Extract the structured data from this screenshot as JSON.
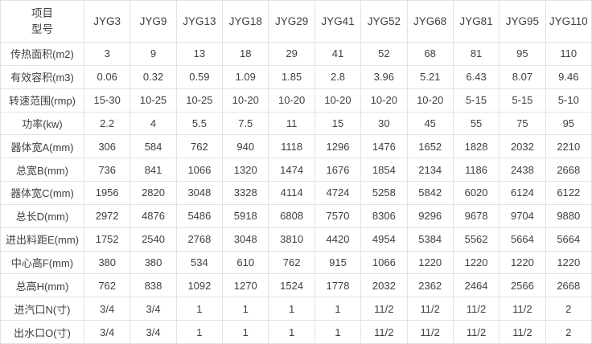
{
  "colors": {
    "background": "#ffffff",
    "border": "#e2e2e2",
    "text": "#404040"
  },
  "chart_data": {
    "type": "table",
    "corner_header": [
      "项目",
      "型号"
    ],
    "columns": [
      "JYG3",
      "JYG9",
      "JYG13",
      "JYG18",
      "JYG29",
      "JYG41",
      "JYG52",
      "JYG68",
      "JYG81",
      "JYG95",
      "JYG110"
    ],
    "rows": [
      {
        "label": "传热面积(m2)",
        "values": [
          "3",
          "9",
          "13",
          "18",
          "29",
          "41",
          "52",
          "68",
          "81",
          "95",
          "110"
        ]
      },
      {
        "label": "有效容积(m3)",
        "values": [
          "0.06",
          "0.32",
          "0.59",
          "1.09",
          "1.85",
          "2.8",
          "3.96",
          "5.21",
          "6.43",
          "8.07",
          "9.46"
        ]
      },
      {
        "label": "转速范围(rmp)",
        "values": [
          "15-30",
          "10-25",
          "10-25",
          "10-20",
          "10-20",
          "10-20",
          "10-20",
          "10-20",
          "5-15",
          "5-15",
          "5-10"
        ]
      },
      {
        "label": "功率(kw)",
        "values": [
          "2.2",
          "4",
          "5.5",
          "7.5",
          "11",
          "15",
          "30",
          "45",
          "55",
          "75",
          "95"
        ]
      },
      {
        "label": "器体宽A(mm)",
        "values": [
          "306",
          "584",
          "762",
          "940",
          "1118",
          "1296",
          "1476",
          "1652",
          "1828",
          "2032",
          "2210"
        ]
      },
      {
        "label": "总宽B(mm)",
        "values": [
          "736",
          "841",
          "1066",
          "1320",
          "1474",
          "1676",
          "1854",
          "2134",
          "1186",
          "2438",
          "2668"
        ]
      },
      {
        "label": "器体宽C(mm)",
        "values": [
          "1956",
          "2820",
          "3048",
          "3328",
          "4114",
          "4724",
          "5258",
          "5842",
          "6020",
          "6124",
          "6122"
        ]
      },
      {
        "label": "总长D(mm)",
        "values": [
          "2972",
          "4876",
          "5486",
          "5918",
          "6808",
          "7570",
          "8306",
          "9296",
          "9678",
          "9704",
          "9880"
        ]
      },
      {
        "label": "进出料距E(mm)",
        "values": [
          "1752",
          "2540",
          "2768",
          "3048",
          "3810",
          "4420",
          "4954",
          "5384",
          "5562",
          "5664",
          "5664"
        ]
      },
      {
        "label": "中心高F(mm)",
        "values": [
          "380",
          "380",
          "534",
          "610",
          "762",
          "915",
          "1066",
          "1220",
          "1220",
          "1220",
          "1220"
        ]
      },
      {
        "label": "总高H(mm)",
        "values": [
          "762",
          "838",
          "1092",
          "1270",
          "1524",
          "1778",
          "2032",
          "2362",
          "2464",
          "2566",
          "2668"
        ]
      },
      {
        "label": "进汽口N(寸)",
        "values": [
          "3/4",
          "3/4",
          "1",
          "1",
          "1",
          "1",
          "11/2",
          "11/2",
          "11/2",
          "11/2",
          "2"
        ]
      },
      {
        "label": "出水口O(寸)",
        "values": [
          "3/4",
          "3/4",
          "1",
          "1",
          "1",
          "1",
          "11/2",
          "11/2",
          "11/2",
          "11/2",
          "2"
        ]
      }
    ]
  }
}
